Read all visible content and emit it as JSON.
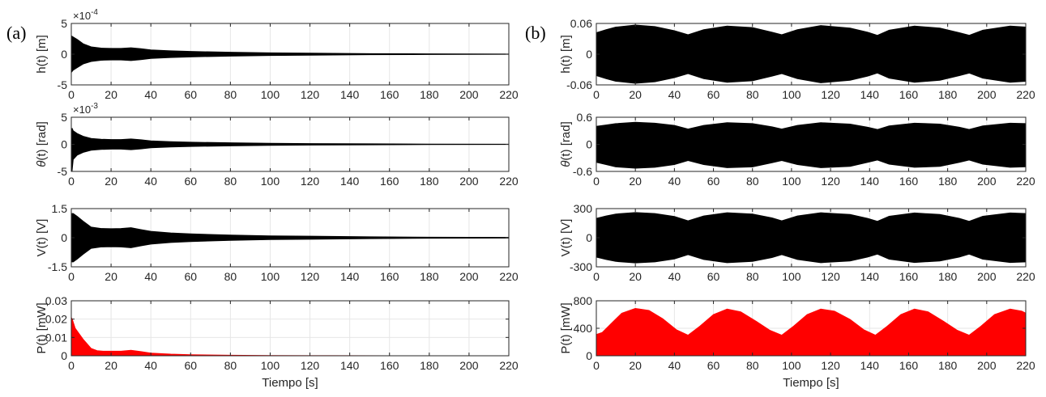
{
  "panel_labels": [
    "(a)",
    "(b)"
  ],
  "chart_data": [
    {
      "type": "area",
      "column": "(a)",
      "ylabel": "h(t) [m]",
      "exponent": "×10",
      "exponent_power": "-4",
      "ylim": [
        -5,
        5
      ],
      "yticks": [
        "5",
        "0",
        "-5"
      ],
      "ytick_values": [
        5,
        0,
        -5
      ],
      "xlim": [
        0,
        220
      ],
      "xticks": [
        "0",
        "20",
        "40",
        "60",
        "80",
        "100",
        "120",
        "140",
        "160",
        "180",
        "200",
        "220"
      ],
      "xlabel": "",
      "color": "#000000",
      "grid": true,
      "envelope": {
        "x": [
          0,
          1,
          3,
          6,
          10,
          15,
          20,
          25,
          30,
          35,
          40,
          50,
          60,
          80,
          100,
          120,
          150,
          180,
          220
        ],
        "upper": [
          3.0,
          2.8,
          2.4,
          1.7,
          1.2,
          1.0,
          0.95,
          0.95,
          1.05,
          0.9,
          0.7,
          0.55,
          0.45,
          0.32,
          0.23,
          0.17,
          0.1,
          0.06,
          0.03
        ],
        "lower": [
          -3.0,
          -2.6,
          -2.2,
          -1.6,
          -1.2,
          -1.0,
          -0.95,
          -0.95,
          -1.05,
          -0.9,
          -0.7,
          -0.55,
          -0.45,
          -0.32,
          -0.23,
          -0.17,
          -0.1,
          -0.06,
          -0.03
        ]
      }
    },
    {
      "type": "area",
      "column": "(a)",
      "ylabel": "θ(t) [rad]",
      "exponent": "×10",
      "exponent_power": "-3",
      "ylim": [
        -5,
        5
      ],
      "yticks": [
        "5",
        "0",
        "-5"
      ],
      "ytick_values": [
        5,
        0,
        -5
      ],
      "xlim": [
        0,
        220
      ],
      "xticks": [
        "0",
        "20",
        "40",
        "60",
        "80",
        "100",
        "120",
        "140",
        "160",
        "180",
        "200",
        "220"
      ],
      "xlabel": "",
      "color": "#000000",
      "grid": true,
      "envelope": {
        "x": [
          0,
          0.4,
          1,
          3,
          6,
          10,
          15,
          20,
          25,
          30,
          35,
          40,
          50,
          60,
          80,
          100,
          120,
          150,
          180,
          220
        ],
        "upper": [
          0.5,
          3.0,
          2.5,
          2.0,
          1.5,
          1.1,
          0.95,
          0.9,
          0.9,
          1.0,
          0.85,
          0.65,
          0.5,
          0.4,
          0.3,
          0.2,
          0.15,
          0.1,
          0.06,
          0.03
        ],
        "lower": [
          -0.5,
          -5.0,
          -2.8,
          -2.0,
          -1.5,
          -1.1,
          -0.95,
          -0.9,
          -0.9,
          -1.0,
          -0.85,
          -0.65,
          -0.5,
          -0.4,
          -0.3,
          -0.2,
          -0.15,
          -0.1,
          -0.06,
          -0.03
        ]
      }
    },
    {
      "type": "area",
      "column": "(a)",
      "ylabel": "V(t) [V]",
      "exponent": "",
      "exponent_power": "",
      "ylim": [
        -1.5,
        1.5
      ],
      "yticks": [
        "1.5",
        "0",
        "-1.5"
      ],
      "ytick_values": [
        1.5,
        0,
        -1.5
      ],
      "xlim": [
        0,
        220
      ],
      "xticks": [
        "0",
        "20",
        "40",
        "60",
        "80",
        "100",
        "120",
        "140",
        "160",
        "180",
        "200",
        "220"
      ],
      "xlabel": "",
      "color": "#000000",
      "grid": true,
      "envelope": {
        "x": [
          0,
          1,
          3,
          6,
          10,
          15,
          20,
          25,
          30,
          35,
          40,
          50,
          60,
          80,
          100,
          120,
          150,
          180,
          220
        ],
        "upper": [
          1.25,
          1.25,
          1.1,
          0.85,
          0.55,
          0.48,
          0.47,
          0.48,
          0.52,
          0.42,
          0.33,
          0.25,
          0.2,
          0.14,
          0.1,
          0.08,
          0.05,
          0.03,
          0.02
        ],
        "lower": [
          -1.25,
          -1.25,
          -1.1,
          -0.85,
          -0.55,
          -0.48,
          -0.47,
          -0.48,
          -0.52,
          -0.42,
          -0.33,
          -0.25,
          -0.2,
          -0.14,
          -0.1,
          -0.08,
          -0.05,
          -0.03,
          -0.02
        ]
      }
    },
    {
      "type": "area",
      "column": "(a)",
      "ylabel": "P(t) [mW]",
      "exponent": "",
      "exponent_power": "",
      "ylim": [
        0,
        0.03
      ],
      "yticks": [
        "0.03",
        "0.02",
        "0.01",
        "0"
      ],
      "ytick_values": [
        0.03,
        0.02,
        0.01,
        0
      ],
      "xlim": [
        0,
        220
      ],
      "xticks": [
        "0",
        "20",
        "40",
        "60",
        "80",
        "100",
        "120",
        "140",
        "160",
        "180",
        "200",
        "220"
      ],
      "xlabel": "Tiempo [s]",
      "color": "#ff0000",
      "grid": true,
      "envelope": {
        "x": [
          0,
          0.5,
          2,
          4,
          6,
          8,
          10,
          13,
          16,
          20,
          25,
          30,
          35,
          40,
          50,
          60,
          80,
          100,
          130,
          160,
          220
        ],
        "upper": [
          0.021,
          0.02,
          0.015,
          0.012,
          0.009,
          0.0065,
          0.004,
          0.0028,
          0.0025,
          0.0025,
          0.0025,
          0.003,
          0.0023,
          0.0015,
          0.0009,
          0.0006,
          0.0003,
          0.00015,
          8e-05,
          4e-05,
          2e-05
        ],
        "lower": [
          0,
          0,
          0,
          0,
          0,
          0,
          0,
          0,
          0,
          0,
          0,
          0,
          0,
          0,
          0,
          0,
          0,
          0,
          0,
          0,
          0
        ]
      }
    },
    {
      "type": "area",
      "column": "(b)",
      "ylabel": "h(t) [m]",
      "exponent": "",
      "exponent_power": "",
      "ylim": [
        -0.06,
        0.06
      ],
      "yticks": [
        "0.06",
        "0",
        "-0.06"
      ],
      "ytick_values": [
        0.06,
        0,
        -0.06
      ],
      "xlim": [
        0,
        220
      ],
      "xticks": [
        "0",
        "20",
        "40",
        "60",
        "80",
        "100",
        "120",
        "140",
        "160",
        "180",
        "200",
        "220"
      ],
      "xlabel": "",
      "color": "#000000",
      "grid": true,
      "envelope": {
        "x": [
          0,
          5,
          10,
          20,
          30,
          40,
          47,
          55,
          67,
          80,
          90,
          95,
          103,
          115,
          130,
          139,
          144,
          150,
          163,
          176,
          186,
          191,
          198,
          212,
          220
        ],
        "upper": [
          0.042,
          0.048,
          0.053,
          0.057,
          0.054,
          0.046,
          0.038,
          0.048,
          0.055,
          0.052,
          0.043,
          0.038,
          0.048,
          0.056,
          0.051,
          0.043,
          0.037,
          0.047,
          0.055,
          0.051,
          0.042,
          0.037,
          0.047,
          0.055,
          0.053
        ],
        "lower": [
          -0.042,
          -0.048,
          -0.053,
          -0.057,
          -0.054,
          -0.046,
          -0.038,
          -0.048,
          -0.055,
          -0.052,
          -0.043,
          -0.038,
          -0.048,
          -0.056,
          -0.051,
          -0.043,
          -0.037,
          -0.047,
          -0.055,
          -0.051,
          -0.042,
          -0.037,
          -0.047,
          -0.055,
          -0.053
        ]
      }
    },
    {
      "type": "area",
      "column": "(b)",
      "ylabel": "θ(t) [rad]",
      "exponent": "",
      "exponent_power": "",
      "ylim": [
        -0.6,
        0.6
      ],
      "yticks": [
        "0.6",
        "0",
        "-0.6"
      ],
      "ytick_values": [
        0.6,
        0,
        -0.6
      ],
      "xlim": [
        0,
        220
      ],
      "xticks": [
        "0",
        "20",
        "40",
        "60",
        "80",
        "100",
        "120",
        "140",
        "160",
        "180",
        "200",
        "220"
      ],
      "xlabel": "",
      "color": "#000000",
      "grid": true,
      "envelope": {
        "x": [
          0,
          5,
          10,
          20,
          30,
          40,
          47,
          55,
          67,
          80,
          90,
          95,
          103,
          115,
          130,
          139,
          144,
          150,
          163,
          176,
          186,
          191,
          198,
          212,
          220
        ],
        "upper": [
          0.4,
          0.43,
          0.46,
          0.49,
          0.47,
          0.42,
          0.34,
          0.42,
          0.48,
          0.46,
          0.39,
          0.34,
          0.42,
          0.48,
          0.45,
          0.38,
          0.33,
          0.41,
          0.47,
          0.45,
          0.38,
          0.33,
          0.41,
          0.47,
          0.46
        ],
        "lower": [
          -0.4,
          -0.45,
          -0.5,
          -0.53,
          -0.51,
          -0.45,
          -0.36,
          -0.45,
          -0.52,
          -0.5,
          -0.41,
          -0.36,
          -0.45,
          -0.52,
          -0.49,
          -0.4,
          -0.35,
          -0.44,
          -0.51,
          -0.49,
          -0.4,
          -0.35,
          -0.44,
          -0.51,
          -0.5
        ]
      }
    },
    {
      "type": "area",
      "column": "(b)",
      "ylabel": "V(t) [V]",
      "exponent": "",
      "exponent_power": "",
      "ylim": [
        -300,
        300
      ],
      "yticks": [
        "300",
        "0",
        "-300"
      ],
      "ytick_values": [
        300,
        0,
        -300
      ],
      "xlim": [
        0,
        220
      ],
      "xticks": [
        "0",
        "20",
        "40",
        "60",
        "80",
        "100",
        "120",
        "140",
        "160",
        "180",
        "200",
        "220"
      ],
      "xlabel": "",
      "color": "#000000",
      "grid": true,
      "envelope": {
        "x": [
          0,
          5,
          10,
          20,
          30,
          40,
          47,
          55,
          67,
          80,
          90,
          95,
          103,
          115,
          130,
          139,
          144,
          150,
          163,
          176,
          186,
          191,
          198,
          212,
          220
        ],
        "upper": [
          200,
          225,
          245,
          260,
          250,
          220,
          175,
          225,
          258,
          245,
          205,
          175,
          225,
          258,
          240,
          200,
          170,
          222,
          256,
          240,
          200,
          170,
          222,
          256,
          250
        ],
        "lower": [
          -200,
          -225,
          -245,
          -260,
          -250,
          -220,
          -175,
          -225,
          -258,
          -245,
          -205,
          -175,
          -225,
          -258,
          -240,
          -200,
          -170,
          -222,
          -256,
          -240,
          -200,
          -170,
          -222,
          -256,
          -250
        ]
      }
    },
    {
      "type": "area",
      "column": "(b)",
      "ylabel": "P(t) [mW]",
      "exponent": "",
      "exponent_power": "",
      "ylim": [
        0,
        800
      ],
      "yticks": [
        "800",
        "400",
        "0"
      ],
      "ytick_values": [
        800,
        400,
        0
      ],
      "xlim": [
        0,
        220
      ],
      "xticks": [
        "0",
        "20",
        "40",
        "60",
        "80",
        "100",
        "120",
        "140",
        "160",
        "180",
        "200",
        "220"
      ],
      "xlabel": "Tiempo [s]",
      "color": "#ff0000",
      "grid": true,
      "envelope": {
        "x": [
          0,
          3,
          8,
          13,
          20,
          27,
          34,
          41,
          47,
          53,
          60,
          67,
          74,
          82,
          89,
          95,
          101,
          108,
          115,
          122,
          130,
          137,
          143,
          149,
          156,
          163,
          170,
          178,
          185,
          191,
          197,
          204,
          212,
          218,
          220
        ],
        "upper": [
          310,
          340,
          480,
          620,
          690,
          660,
          540,
          380,
          300,
          430,
          600,
          680,
          640,
          500,
          370,
          300,
          430,
          600,
          680,
          650,
          530,
          380,
          300,
          430,
          600,
          680,
          640,
          500,
          370,
          300,
          430,
          600,
          680,
          650,
          620
        ],
        "lower": [
          0,
          0,
          0,
          0,
          0,
          0,
          0,
          0,
          0,
          0,
          0,
          0,
          0,
          0,
          0,
          0,
          0,
          0,
          0,
          0,
          0,
          0,
          0,
          0,
          0,
          0,
          0,
          0,
          0,
          0,
          0,
          0,
          0,
          0,
          0
        ]
      }
    }
  ]
}
